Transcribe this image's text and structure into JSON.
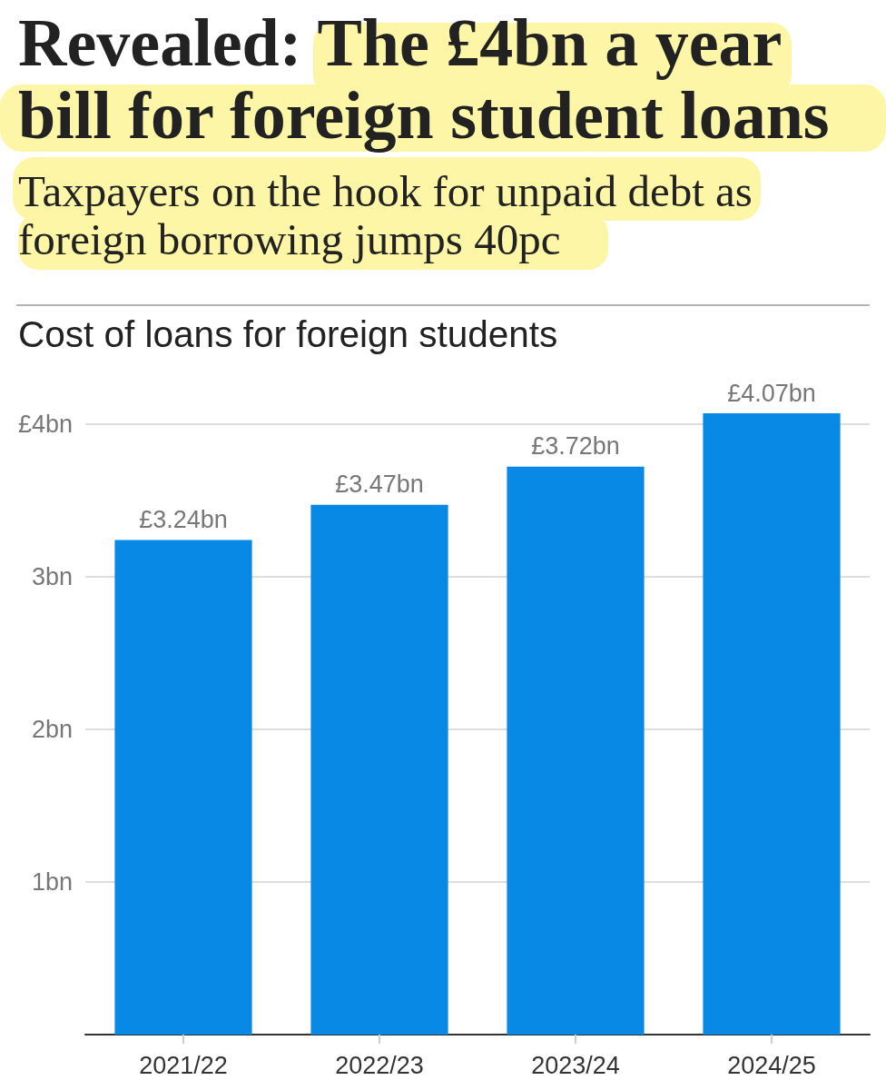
{
  "chart_data": {
    "type": "bar",
    "title": "Revealed: The £4bn a year bill for foreign student loans",
    "subtitle": "Taxpayers on the hook for unpaid debt as foreign borrowing jumps 40pc",
    "annotations": [
      "Cost of loans for foreign students"
    ],
    "categories": [
      "2021/22",
      "2022/23",
      "2023/24",
      "2024/25"
    ],
    "values": [
      3.24,
      3.47,
      3.72,
      4.07
    ],
    "value_labels": [
      "£3.24bn",
      "£3.47bn",
      "£3.72bn",
      "£4.07bn"
    ],
    "color": "#0789e5",
    "ylim": [
      0,
      4.07
    ],
    "yticks": [
      {
        "value": 1,
        "label": "1bn"
      },
      {
        "value": 2,
        "label": "2bn"
      },
      {
        "value": 3,
        "label": "3bn"
      },
      {
        "value": 4,
        "label": "£4bn"
      }
    ],
    "grid": "y"
  }
}
